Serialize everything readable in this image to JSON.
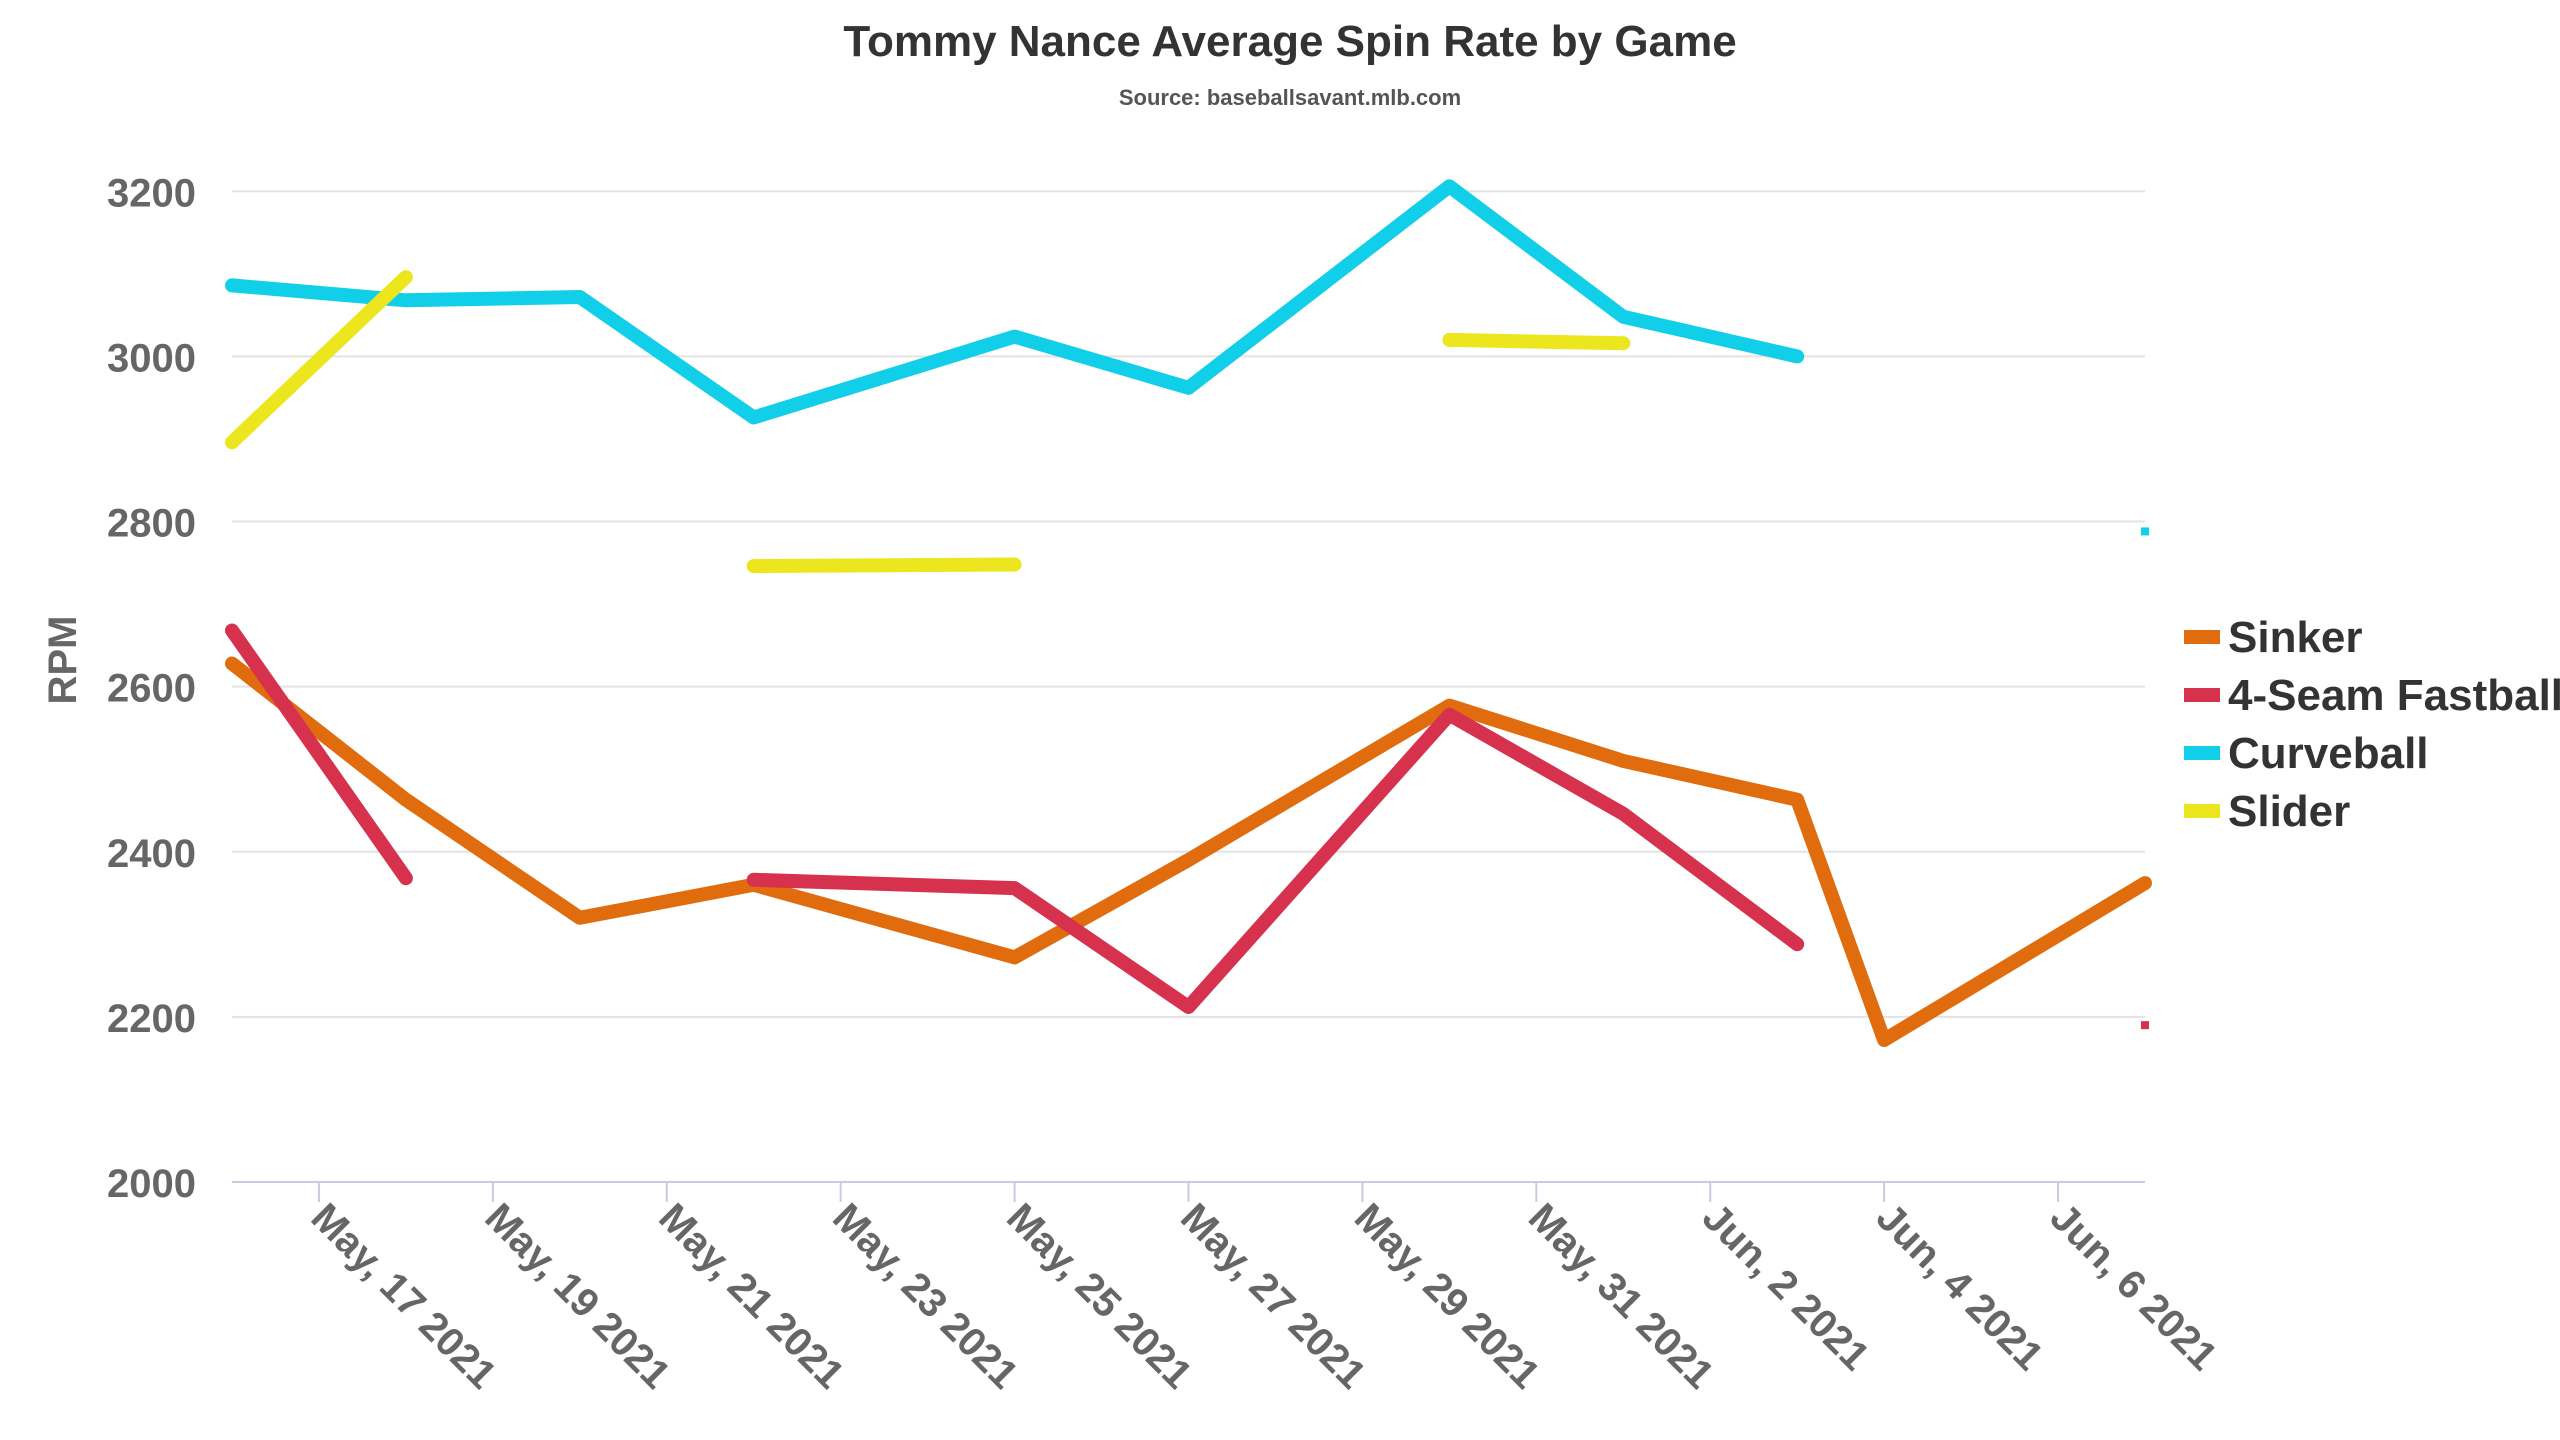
{
  "chart_data": {
    "type": "line",
    "title": "Tommy Nance Average Spin Rate by Game",
    "subtitle": "Source: baseballsavant.mlb.com",
    "ylabel": "RPM",
    "xlabel": "",
    "ylim": [
      2000,
      3250
    ],
    "yticks": [
      2000,
      2200,
      2400,
      2600,
      2800,
      3000,
      3200
    ],
    "xlim": [
      "2021-05-16",
      "2021-06-07"
    ],
    "xtick_labels": [
      "May, 17 2021",
      "May, 19 2021",
      "May, 21 2021",
      "May, 23 2021",
      "May, 25 2021",
      "May, 27 2021",
      "May, 29 2021",
      "May, 31 2021",
      "Jun, 2 2021",
      "Jun, 4 2021",
      "Jun, 6 2021"
    ],
    "xtick_dates": [
      "2021-05-17",
      "2021-05-19",
      "2021-05-21",
      "2021-05-23",
      "2021-05-25",
      "2021-05-27",
      "2021-05-29",
      "2021-05-31",
      "2021-06-02",
      "2021-06-04",
      "2021-06-06"
    ],
    "grid": true,
    "legend_position": "right",
    "series": [
      {
        "name": "Sinker",
        "color": "#e06c0e",
        "points": [
          [
            "2021-05-16",
            2628
          ],
          [
            "2021-05-18",
            2463
          ],
          [
            "2021-05-20",
            2320
          ],
          [
            "2021-05-22",
            2360
          ],
          [
            "2021-05-25",
            2272
          ],
          [
            "2021-05-27",
            2390
          ],
          [
            "2021-05-30",
            2577
          ],
          [
            "2021-06-01",
            2510
          ],
          [
            "2021-06-03",
            2463
          ],
          [
            "2021-06-04",
            2172
          ],
          [
            "2021-06-07",
            2362
          ]
        ]
      },
      {
        "name": "4-Seam Fastball",
        "color": "#d7324d",
        "segments": [
          [
            [
              "2021-05-16",
              2668
            ],
            [
              "2021-05-18",
              2368
            ]
          ],
          [
            [
              "2021-05-22",
              2366
            ],
            [
              "2021-05-25",
              2356
            ],
            [
              "2021-05-27",
              2212
            ],
            [
              "2021-05-30",
              2566
            ],
            [
              "2021-06-01",
              2446
            ],
            [
              "2021-06-03",
              2288
            ]
          ],
          [
            [
              "2021-06-07",
              2190
            ]
          ]
        ]
      },
      {
        "name": "Curveball",
        "color": "#12cfe9",
        "segments": [
          [
            [
              "2021-05-16",
              3086
            ],
            [
              "2021-05-18",
              3068
            ],
            [
              "2021-05-20",
              3072
            ],
            [
              "2021-05-22",
              2926
            ],
            [
              "2021-05-25",
              3024
            ],
            [
              "2021-05-27",
              2962
            ],
            [
              "2021-05-30",
              3206
            ],
            [
              "2021-06-01",
              3048
            ],
            [
              "2021-06-03",
              3000
            ]
          ],
          [
            [
              "2021-06-07",
              2788
            ]
          ]
        ]
      },
      {
        "name": "Slider",
        "color": "#ece61f",
        "segments": [
          [
            [
              "2021-05-16",
              2896
            ],
            [
              "2021-05-18",
              3096
            ]
          ],
          [
            [
              "2021-05-22",
              2746
            ],
            [
              "2021-05-25",
              2748
            ]
          ],
          [
            [
              "2021-05-30",
              3020
            ],
            [
              "2021-06-01",
              3016
            ]
          ]
        ]
      }
    ]
  }
}
